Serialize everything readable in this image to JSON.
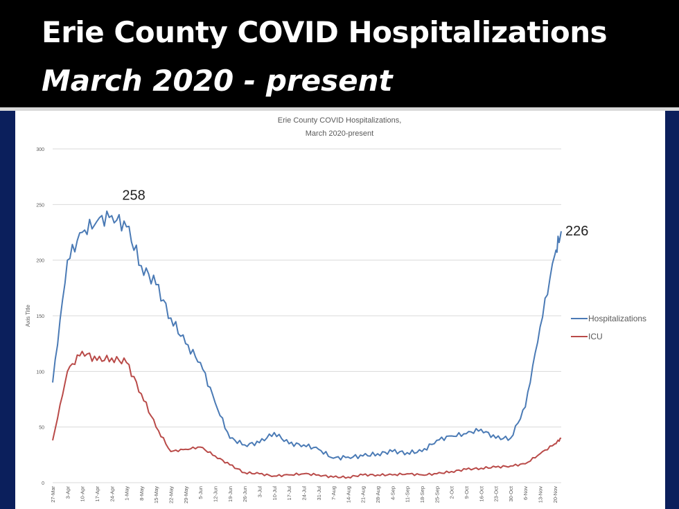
{
  "slide": {
    "title": "Erie County COVID Hospitalizations",
    "subtitle": "March 2020 - present"
  },
  "chart_data": {
    "type": "line",
    "title_line1": "Erie County COVID Hospitalizations,",
    "title_line2": "March 2020-present",
    "ylabel": "Axis Title",
    "xlabel": "",
    "ylim": [
      0,
      300
    ],
    "yticks": [
      0,
      50,
      100,
      150,
      200,
      250,
      300
    ],
    "grid": true,
    "legend_position": "right",
    "x_tick_labels": [
      "27-Mar",
      "3-Apr",
      "10-Apr",
      "17-Apr",
      "24-Apr",
      "1-May",
      "8-May",
      "15-May",
      "22-May",
      "29-May",
      "5-Jun",
      "12-Jun",
      "19-Jun",
      "26-Jun",
      "3-Jul",
      "10-Jul",
      "17-Jul",
      "24-Jul",
      "31-Jul",
      "7-Aug",
      "14-Aug",
      "21-Aug",
      "28-Aug",
      "4-Sep",
      "11-Sep",
      "18-Sep",
      "25-Sep",
      "2-Oct",
      "9-Oct",
      "16-Oct",
      "23-Oct",
      "30-Oct",
      "6-Nov",
      "13-Nov",
      "20-Nov"
    ],
    "x": [
      "27-Mar",
      "3-Apr",
      "10-Apr",
      "17-Apr",
      "24-Apr",
      "1-May",
      "8-May",
      "15-May",
      "22-May",
      "29-May",
      "5-Jun",
      "12-Jun",
      "19-Jun",
      "26-Jun",
      "3-Jul",
      "10-Jul",
      "17-Jul",
      "24-Jul",
      "31-Jul",
      "7-Aug",
      "14-Aug",
      "21-Aug",
      "28-Aug",
      "4-Sep",
      "11-Sep",
      "18-Sep",
      "25-Sep",
      "2-Oct",
      "9-Oct",
      "16-Oct",
      "23-Oct",
      "30-Oct",
      "6-Nov",
      "13-Nov",
      "20-Nov",
      "23-Nov"
    ],
    "series": [
      {
        "name": "Hospitalizations",
        "color": "#4a7ab5",
        "values": [
          90,
          200,
          225,
          235,
          240,
          230,
          195,
          178,
          148,
          125,
          108,
          72,
          40,
          34,
          36,
          45,
          35,
          34,
          30,
          22,
          23,
          24,
          26,
          28,
          27,
          28,
          38,
          42,
          44,
          48,
          40,
          40,
          68,
          140,
          205,
          226
        ]
      },
      {
        "name": "ICU",
        "color": "#b94a48",
        "values": [
          38,
          100,
          118,
          110,
          112,
          108,
          80,
          50,
          28,
          30,
          32,
          24,
          16,
          9,
          8,
          6,
          7,
          8,
          7,
          5,
          5,
          7,
          7,
          7,
          8,
          7,
          8,
          10,
          12,
          13,
          14,
          15,
          17,
          26,
          35,
          40
        ]
      }
    ],
    "annotations": [
      {
        "text": "258",
        "x": "27-Apr",
        "y": 258
      },
      {
        "text": "226",
        "x": "23-Nov",
        "y": 226
      }
    ]
  }
}
